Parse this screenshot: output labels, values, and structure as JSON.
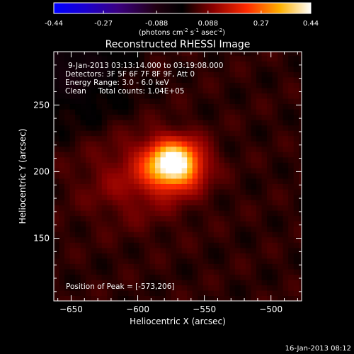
{
  "chart_data": {
    "type": "heatmap",
    "title": "Reconstructed RHESSI Image",
    "xlabel": "Heliocentric X (arcsec)",
    "ylabel": "Heliocentric Y (arcsec)",
    "xlim": [
      -663,
      -477
    ],
    "ylim": [
      103,
      290
    ],
    "xticks": [
      -650,
      -600,
      -550,
      -500
    ],
    "yticks": [
      150,
      200,
      250
    ],
    "colorbar": {
      "min": -0.44,
      "max": 0.44,
      "ticks": [
        "-0.44",
        "-0.27",
        "-0.088",
        "0.088",
        "0.27",
        "0.44"
      ],
      "tick_values": [
        -0.44,
        -0.27,
        -0.088,
        0.088,
        0.27,
        0.44
      ],
      "unit_prefix": "(photons cm",
      "unit_exp1": "-2",
      "unit_mid": " s",
      "unit_exp2": "-1",
      "unit_mid2": " asec",
      "unit_exp3": "-2",
      "unit_suffix": ")"
    },
    "annotations": [
      "9-Jan-2013 03:13:14.000 to 03:19:08.000",
      "Detectors: 3F 5F 6F 7F 8F 9F, Att 0",
      "Energy Range: 3.0 - 6.0 keV",
      "Clean     Total counts: 1.04E+05"
    ],
    "peak_label": "Position of Peak = [-573,206]",
    "peak": {
      "x": -573,
      "y": 206,
      "value": 0.44
    },
    "sources": [
      {
        "x": -573,
        "y": 206,
        "sigma_x": 14,
        "sigma_y": 12,
        "amplitude": 0.44
      },
      {
        "x": -600,
        "y": 195,
        "sigma_x": 28,
        "sigma_y": 22,
        "amplitude": 0.08
      }
    ],
    "background_level": 0.03,
    "negative_region": {
      "x": -650,
      "y": 278,
      "sigma_x": 28,
      "sigma_y": 26,
      "amplitude": -0.08
    },
    "grid": false
  },
  "footer": {
    "date": "16-Jan-2013 08:12"
  }
}
